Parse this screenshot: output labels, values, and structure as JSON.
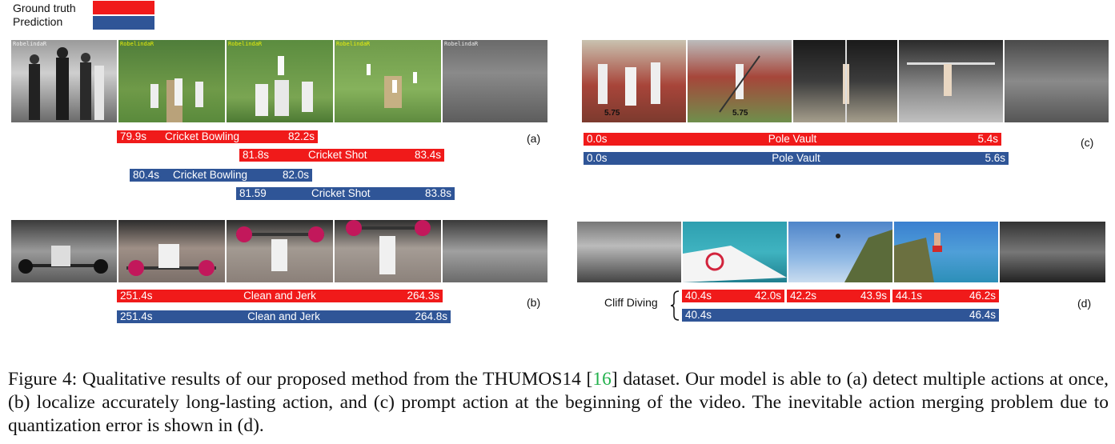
{
  "legend": {
    "ground_truth": "Ground truth",
    "prediction": "Prediction",
    "ground_truth_color": "#f01a1a",
    "prediction_color": "#2f5597"
  },
  "panel_a": {
    "label": "(a)",
    "frame_tags": [
      "RobelindaR",
      "RobelindaR",
      "RobelindaR",
      "RobelindaR",
      "RobelindaR"
    ],
    "gt_bowling": {
      "start": "79.9s",
      "name": "Cricket Bowling",
      "end": "82.2s"
    },
    "gt_shot": {
      "start": "81.8s",
      "name": "Cricket Shot",
      "end": "83.4s"
    },
    "pred_bowling": {
      "start": "80.4s",
      "name": "Cricket Bowling",
      "end": "82.0s"
    },
    "pred_shot": {
      "start": "81.59",
      "name": "Cricket Shot",
      "end": "83.8s"
    }
  },
  "panel_b": {
    "label": "(b)",
    "gt": {
      "start": "251.4s",
      "name": "Clean and Jerk",
      "end": "264.3s"
    },
    "pred": {
      "start": "251.4s",
      "name": "Clean and Jerk",
      "end": "264.8s"
    }
  },
  "panel_c": {
    "label": "(c)",
    "frame_marks": [
      "5.75",
      "5.75"
    ],
    "gt": {
      "start": "0.0s",
      "name": "Pole Vault",
      "end": "5.4s"
    },
    "pred": {
      "start": "0.0s",
      "name": "Pole Vault",
      "end": "5.6s"
    }
  },
  "panel_d": {
    "label": "(d)",
    "class_name": "Cliff Diving",
    "gt_segments": [
      {
        "start": "40.4s",
        "end": "42.0s"
      },
      {
        "start": "42.2s",
        "end": "43.9s"
      },
      {
        "start": "44.1s",
        "end": "46.2s"
      }
    ],
    "pred": {
      "start": "40.4s",
      "end": "46.4s"
    }
  },
  "caption": {
    "prefix": "Figure 4: Qualitative results of our proposed method from the THUMOS14 [",
    "cite": "16",
    "suffix": "] dataset. Our model is able to (a) detect multiple actions at once, (b) localize accurately long-lasting action, and (c) prompt action at the beginning of the video. The inevitable action merging problem due to quantization error is shown in (d)."
  }
}
